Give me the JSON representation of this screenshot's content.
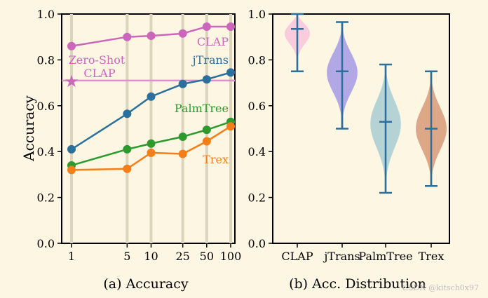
{
  "watermark": "CSDN @kitsch0x97",
  "chart_data": [
    {
      "type": "line",
      "caption": "(a) Accuracy",
      "ylabel": "Accuracy",
      "xlabel": "",
      "x": [
        1,
        5,
        10,
        25,
        50,
        100
      ],
      "x_tick_labels": [
        "1",
        "5",
        "10",
        "25",
        "50",
        "100"
      ],
      "xscale": "log",
      "ylim": [
        0.0,
        1.0
      ],
      "y_ticks": [
        0.0,
        0.2,
        0.4,
        0.6,
        0.8,
        1.0
      ],
      "y_tick_labels": [
        "0.0",
        "0.2",
        "0.4",
        "0.6",
        "0.8",
        "1.0"
      ],
      "vertical_gridlines": true,
      "series": [
        {
          "name": "CLAP",
          "color": "#cc66bb",
          "values": [
            0.86,
            0.9,
            0.905,
            0.915,
            0.945,
            0.945
          ]
        },
        {
          "name": "jTrans",
          "color": "#2b6f9c",
          "values": [
            0.41,
            0.565,
            0.64,
            0.695,
            0.715,
            0.745
          ]
        },
        {
          "name": "PalmTree",
          "color": "#2e9a2e",
          "values": [
            0.34,
            0.41,
            0.435,
            0.465,
            0.495,
            0.53
          ]
        },
        {
          "name": "Trex",
          "color": "#f47f1a",
          "values": [
            0.32,
            0.325,
            0.395,
            0.39,
            0.445,
            0.51
          ]
        }
      ],
      "reference": {
        "name": "Zero-Shot CLAP",
        "line1": "Zero-Shot",
        "line2": "CLAP",
        "value": 0.71,
        "color": "#cc66bb",
        "marker": "★"
      }
    },
    {
      "type": "violin",
      "caption": "(b) Acc. Distribution",
      "ylim": [
        0.0,
        1.0
      ],
      "y_ticks": [
        0.0,
        0.2,
        0.4,
        0.6,
        0.8,
        1.0
      ],
      "y_tick_labels": [
        "0.0",
        "0.2",
        "0.4",
        "0.6",
        "0.8",
        "1.0"
      ],
      "stat_color": "#2b6f9c",
      "categories": [
        "CLAP",
        "jTrans",
        "PalmTree",
        "Trex"
      ],
      "violins": [
        {
          "name": "CLAP",
          "color": "#f9c3dc",
          "min": 0.75,
          "max": 1.0,
          "mean": 0.935
        },
        {
          "name": "jTrans",
          "color": "#a59ae6",
          "min": 0.5,
          "max": 0.965,
          "mean": 0.75
        },
        {
          "name": "PalmTree",
          "color": "#a8ccd2",
          "min": 0.22,
          "max": 0.78,
          "mean": 0.53
        },
        {
          "name": "Trex",
          "color": "#d79a78",
          "min": 0.25,
          "max": 0.75,
          "mean": 0.5
        }
      ]
    }
  ]
}
